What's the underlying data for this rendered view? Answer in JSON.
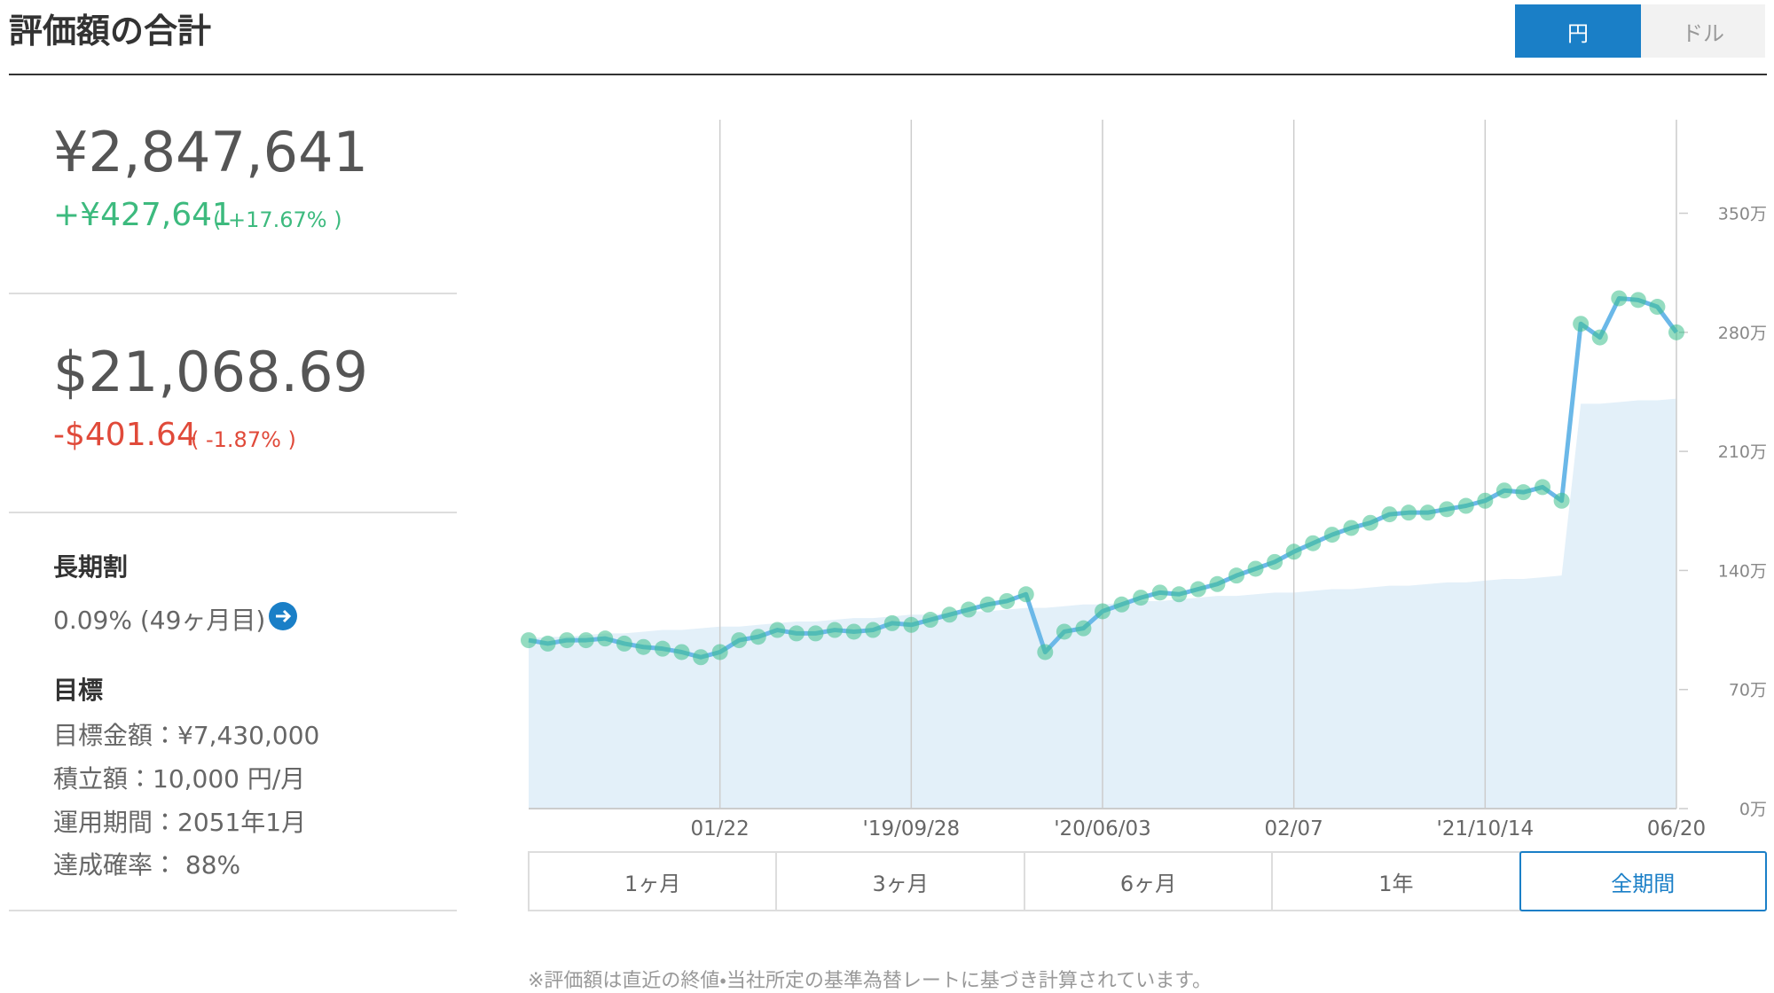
{
  "header": {
    "title": "評価額の合計",
    "currency_toggle": [
      "円",
      "ドル"
    ],
    "selected_currency": 0
  },
  "summary": {
    "jpy": {
      "value": "¥2,847,641",
      "change": "+¥427,641",
      "percent": "( +17.67% )"
    },
    "usd": {
      "value": "$21,068.69",
      "change": "-$401.64",
      "percent": "( -1.87% )"
    }
  },
  "long_term": {
    "title": "長期割",
    "text": "0.09% (49ヶ月目)"
  },
  "goal": {
    "title": "目標",
    "items": [
      "目標金額：¥7,430,000",
      "積立額：10,000 円/月",
      "運用期間：2051年1月",
      "達成確率： 88%"
    ]
  },
  "chart_data": {
    "type": "line",
    "categories": [
      null,
      null,
      null,
      null,
      null,
      null,
      null,
      null,
      null,
      null,
      "01/22",
      null,
      null,
      null,
      null,
      null,
      null,
      null,
      null,
      null,
      "'19/09/28",
      null,
      null,
      null,
      null,
      null,
      null,
      null,
      null,
      null,
      "'20/06/03",
      null,
      null,
      null,
      null,
      null,
      null,
      null,
      null,
      null,
      "02/07",
      null,
      null,
      null,
      null,
      null,
      null,
      null,
      null,
      null,
      "'21/10/14",
      null,
      null,
      null,
      null,
      null,
      null,
      null,
      null,
      null,
      "06/20"
    ],
    "series": [
      {
        "color": "#6bb8e8",
        "values": [
          99,
          97,
          99,
          99,
          100,
          97,
          95,
          94,
          92,
          89,
          92,
          99,
          101,
          105,
          103,
          103,
          105,
          104,
          105,
          109,
          108,
          111,
          114,
          117,
          120,
          122,
          126,
          92,
          104,
          106,
          116,
          120,
          124,
          127,
          126,
          129,
          132,
          137,
          141,
          145,
          151,
          156,
          161,
          165,
          168,
          173,
          174,
          174,
          176,
          178,
          181,
          187,
          186,
          189,
          181,
          285,
          277,
          300,
          299,
          295,
          280
        ]
      },
      {
        "color": "#e3f0f9",
        "values": [
          100,
          101,
          101,
          102,
          103,
          103,
          104,
          105,
          105,
          106,
          107,
          107,
          108,
          109,
          110,
          110,
          111,
          112,
          112,
          113,
          114,
          114,
          115,
          116,
          116,
          117,
          118,
          118,
          119,
          120,
          120,
          121,
          122,
          122,
          123,
          124,
          125,
          125,
          126,
          127,
          127,
          128,
          129,
          129,
          130,
          131,
          131,
          132,
          133,
          133,
          134,
          135,
          135,
          136,
          137,
          238,
          238,
          239,
          240,
          240,
          241
        ]
      }
    ],
    "marker_color": "#3cc08c",
    "ylim": [
      0,
      405
    ],
    "yticks": [
      {
        "value": 0,
        "label": "0万"
      },
      {
        "value": 70,
        "label": "70万"
      },
      {
        "value": 140,
        "label": "140万"
      },
      {
        "value": 210,
        "label": "210万"
      },
      {
        "value": 280,
        "label": "280万"
      },
      {
        "value": 350,
        "label": "350万"
      }
    ]
  },
  "period_buttons": [
    "1ヶ月",
    "3ヶ月",
    "6ヶ月",
    "1年",
    "全期間"
  ],
  "selected_period": 4,
  "footnote": "※評価額は直近の終値・当社所定の基準為替レートに基づき計算されています。"
}
